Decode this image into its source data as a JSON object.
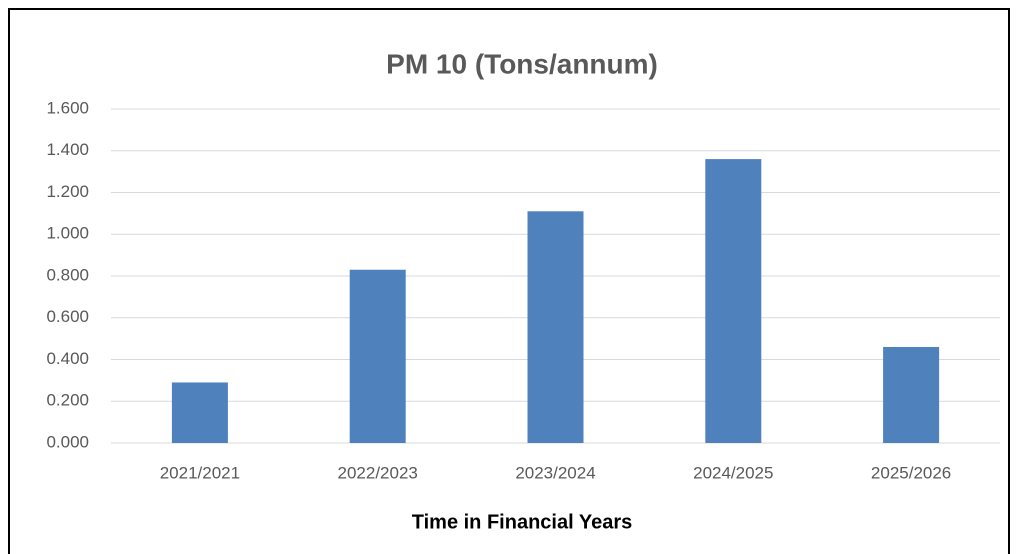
{
  "chart_data": {
    "type": "bar",
    "title": "PM 10 (Tons/annum)",
    "x_label": "Time in Financial Years",
    "categories": [
      "2021/2021",
      "2022/2023",
      "2023/2024",
      "2024/2025",
      "2025/2026"
    ],
    "values": [
      0.29,
      0.83,
      1.11,
      1.36,
      0.46
    ],
    "color": "#4f81bd",
    "ylim": [
      0,
      1.6
    ],
    "yticks": [
      {
        "value": 0,
        "label": "0.000"
      },
      {
        "value": 0.2,
        "label": "0.200"
      },
      {
        "value": 0.4,
        "label": "0.400"
      },
      {
        "value": 0.6,
        "label": "0.600"
      },
      {
        "value": 0.8,
        "label": "0.800"
      },
      {
        "value": 1.0,
        "label": "1.000"
      },
      {
        "value": 1.2,
        "label": "1.200"
      },
      {
        "value": 1.4,
        "label": "1.400"
      },
      {
        "value": 1.6,
        "label": "1.600"
      }
    ],
    "grid": true
  }
}
